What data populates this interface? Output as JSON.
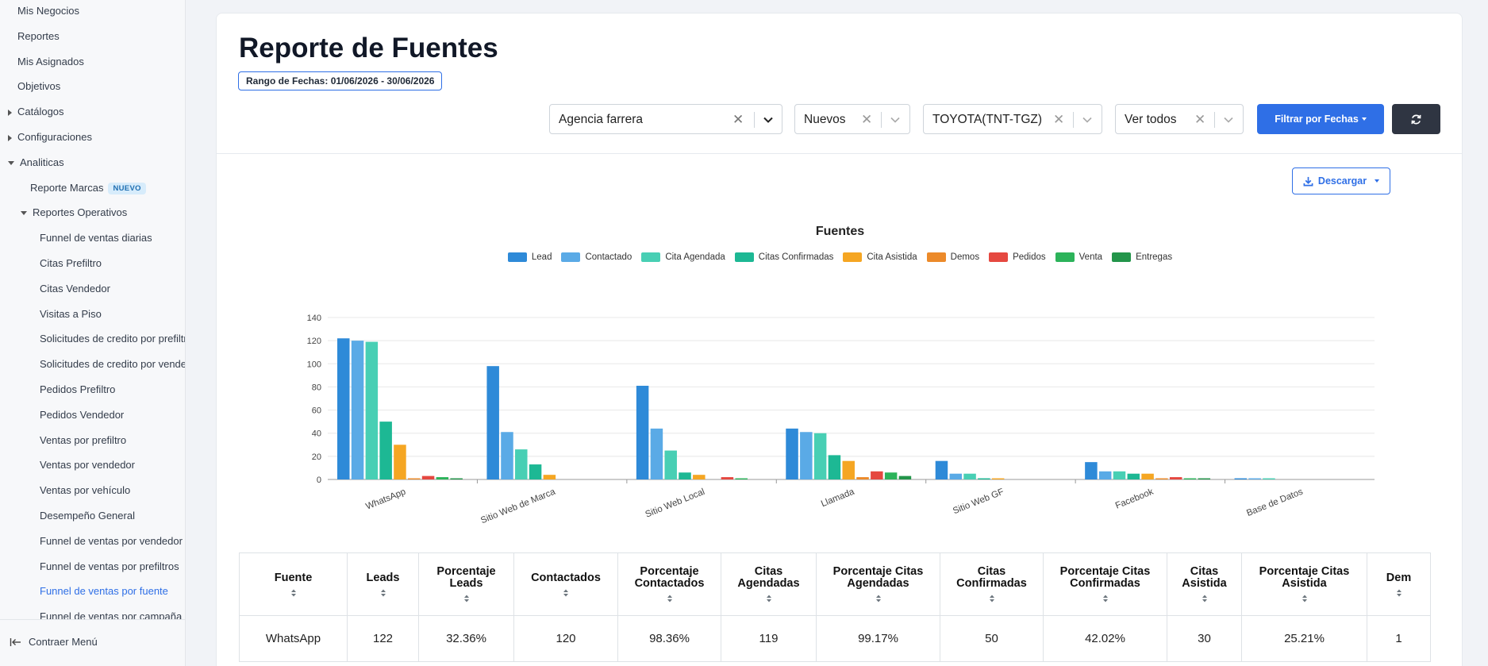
{
  "sidebar": {
    "items": [
      {
        "label": "Mis Negocios",
        "level": 0
      },
      {
        "label": "Reportes",
        "level": 0
      },
      {
        "label": "Mis Asignados",
        "level": 0
      },
      {
        "label": "Objetivos",
        "level": 0
      },
      {
        "label": "Catálogos",
        "level": 0,
        "caret": "right"
      },
      {
        "label": "Configuraciones",
        "level": 0,
        "caret": "right"
      },
      {
        "label": "Analiticas",
        "level": 0,
        "caret": "down"
      },
      {
        "label": "Reporte Marcas",
        "level": 1,
        "badge": "NUEVO"
      },
      {
        "label": "Reportes Operativos",
        "level": 1,
        "caret": "down"
      },
      {
        "label": "Funnel de ventas diarias",
        "level": 2
      },
      {
        "label": "Citas Prefiltro",
        "level": 2
      },
      {
        "label": "Citas Vendedor",
        "level": 2
      },
      {
        "label": "Visitas a Piso",
        "level": 2
      },
      {
        "label": "Solicitudes de credito por prefiltro",
        "level": 2
      },
      {
        "label": "Solicitudes de credito por vendedor",
        "level": 2
      },
      {
        "label": "Pedidos Prefiltro",
        "level": 2
      },
      {
        "label": "Pedidos Vendedor",
        "level": 2
      },
      {
        "label": "Ventas por prefiltro",
        "level": 2
      },
      {
        "label": "Ventas por vendedor",
        "level": 2
      },
      {
        "label": "Ventas por vehículo",
        "level": 2
      },
      {
        "label": "Desempeño General",
        "level": 2
      },
      {
        "label": "Funnel de ventas por vendedor",
        "level": 2
      },
      {
        "label": "Funnel de ventas por prefiltros",
        "level": 2
      },
      {
        "label": "Funnel de ventas por fuente",
        "level": 2,
        "active": true
      },
      {
        "label": "Funnel de ventas por campaña",
        "level": 2
      }
    ],
    "collapse_label": "Contraer Menú"
  },
  "header": {
    "title": "Reporte de Fuentes",
    "date_range": "Rango de Fechas: 01/06/2026 - 30/06/2026"
  },
  "filters": {
    "agency": "Agencia farrera",
    "status": "Nuevos",
    "brand": "TOYOTA(TNT-TGZ)",
    "view": "Ver todos",
    "filter_dates_label": "Filtrar por Fechas",
    "download_label": "Descargar"
  },
  "colors": {
    "accent": "#2f6fe6",
    "dark_button": "#2f3542"
  },
  "chart_data": {
    "type": "bar",
    "title": "Fuentes",
    "legend_position": "top",
    "grid": true,
    "ylim": [
      0,
      140
    ],
    "yticks": [
      0,
      20,
      40,
      60,
      80,
      100,
      120,
      140
    ],
    "categories": [
      "WhatsApp",
      "Sitio Web de Marca",
      "Sitio Web Local",
      "Llamada",
      "Sitio Web GF",
      "Facebook",
      "Base de Datos"
    ],
    "series": [
      {
        "name": "Lead",
        "color": "#2e8ad8",
        "values": [
          122,
          98,
          81,
          44,
          16,
          15,
          1
        ]
      },
      {
        "name": "Contactado",
        "color": "#5aaae6",
        "values": [
          120,
          41,
          44,
          41,
          5,
          7,
          1
        ]
      },
      {
        "name": "Cita Agendada",
        "color": "#48cfb4",
        "values": [
          119,
          26,
          25,
          40,
          5,
          7,
          1
        ]
      },
      {
        "name": "Citas Confirmadas",
        "color": "#1db894",
        "values": [
          50,
          13,
          6,
          21,
          1,
          5,
          0
        ]
      },
      {
        "name": "Cita Asistida",
        "color": "#f5a623",
        "values": [
          30,
          4,
          4,
          16,
          1,
          5,
          0
        ]
      },
      {
        "name": "Demos",
        "color": "#ec8a2a",
        "values": [
          1,
          0,
          0,
          2,
          0,
          1,
          0
        ]
      },
      {
        "name": "Pedidos",
        "color": "#e54840",
        "values": [
          3,
          0,
          2,
          7,
          0,
          2,
          0
        ]
      },
      {
        "name": "Venta",
        "color": "#2cb35a",
        "values": [
          2,
          0,
          1,
          6,
          0,
          1,
          0
        ]
      },
      {
        "name": "Entregas",
        "color": "#23954a",
        "values": [
          1,
          0,
          0,
          3,
          0,
          1,
          0
        ]
      }
    ]
  },
  "table": {
    "headers": [
      [
        "Fuente"
      ],
      [
        "Leads"
      ],
      [
        "Porcentaje",
        "Leads"
      ],
      [
        "Contactados"
      ],
      [
        "Porcentaje",
        "Contactados"
      ],
      [
        "Citas",
        "Agendadas"
      ],
      [
        "Porcentaje Citas",
        "Agendadas"
      ],
      [
        "Citas",
        "Confirmadas"
      ],
      [
        "Porcentaje Citas",
        "Confirmadas"
      ],
      [
        "Citas",
        "Asistida"
      ],
      [
        "Porcentaje Citas",
        "Asistida"
      ],
      [
        "Dem"
      ]
    ],
    "rows": [
      [
        "WhatsApp",
        "122",
        "32.36%",
        "120",
        "98.36%",
        "119",
        "99.17%",
        "50",
        "42.02%",
        "30",
        "25.21%",
        "1"
      ]
    ]
  }
}
